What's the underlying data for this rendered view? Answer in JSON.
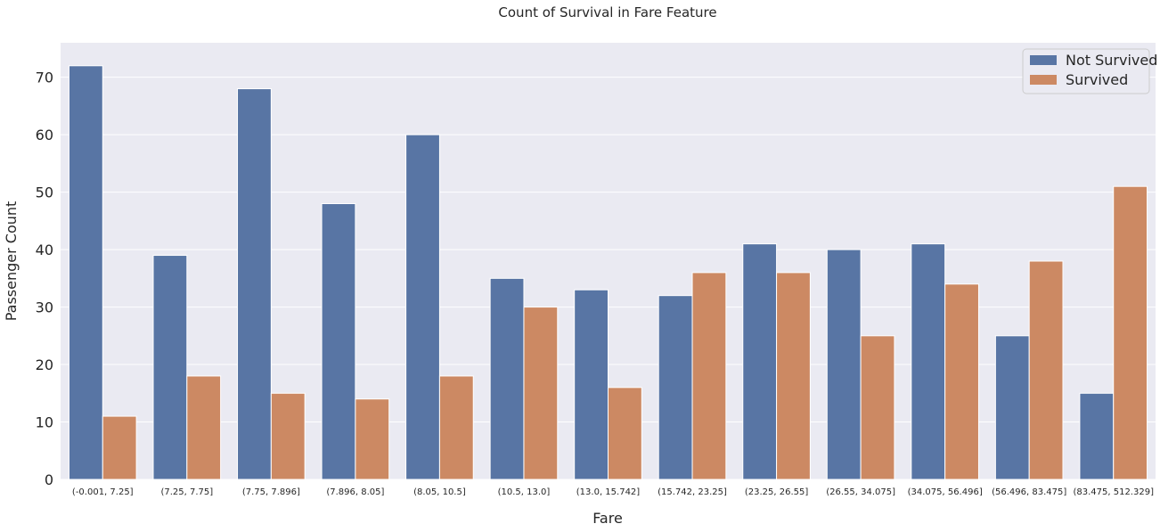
{
  "chart_data": {
    "type": "bar",
    "title": "Count of Survival in Fare Feature",
    "xlabel": "Fare",
    "ylabel": "Passenger Count",
    "ylim": [
      0,
      76
    ],
    "yticks": [
      0,
      10,
      20,
      30,
      40,
      50,
      60,
      70
    ],
    "grid": true,
    "legend_position": "top-right",
    "categories": [
      "(-0.001, 7.25]",
      "(7.25, 7.75]",
      "(7.75, 7.896]",
      "(7.896, 8.05]",
      "(8.05, 10.5]",
      "(10.5, 13.0]",
      "(13.0, 15.742]",
      "(15.742, 23.25]",
      "(23.25, 26.55]",
      "(26.55, 34.075]",
      "(34.075, 56.496]",
      "(56.496, 83.475]",
      "(83.475, 512.329]"
    ],
    "series": [
      {
        "name": "Not Survived",
        "color": "#5875a4",
        "values": [
          72,
          39,
          68,
          48,
          60,
          35,
          33,
          32,
          41,
          40,
          41,
          25,
          15
        ]
      },
      {
        "name": "Survived",
        "color": "#cc8963",
        "values": [
          11,
          18,
          15,
          14,
          18,
          30,
          16,
          36,
          36,
          25,
          34,
          38,
          51
        ]
      }
    ]
  },
  "colors": {
    "plot_background": "#eaeaf2",
    "grid": "#ffffff"
  }
}
